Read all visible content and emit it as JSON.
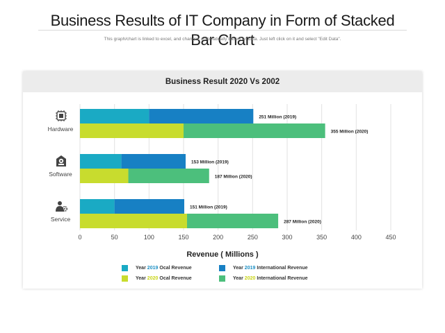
{
  "page": {
    "title": "Business Results of IT Company in Form of Stacked Bar Chart",
    "subtitle": "This graph/chart is linked to excel, and changes automatically based on data. Just left click on it and select \"Edit Data\"."
  },
  "colors": {
    "2019_local": "#1aaac4",
    "2019_international": "#1780c4",
    "2020_local": "#c8dc2e",
    "2020_international": "#4cbf7c",
    "year_2019_text": "#1b8fc4",
    "year_2020_text": "#c8d414"
  },
  "chart_data": {
    "type": "bar",
    "orientation": "horizontal",
    "stacked": true,
    "title": "Business Result 2020 Vs 2002",
    "xlabel": "Revenue ( Millions )",
    "ylabel": "",
    "xlim": [
      0,
      450
    ],
    "xticks": [
      0,
      50,
      100,
      150,
      200,
      250,
      300,
      350,
      400,
      450
    ],
    "grid": "vertical",
    "legend_position": "bottom",
    "categories": [
      {
        "name": "Hardware",
        "icon": "cpu-chip-icon"
      },
      {
        "name": "Software",
        "icon": "software-gear-icon"
      },
      {
        "name": "Service",
        "icon": "service-person-gear-icon"
      }
    ],
    "groups": [
      {
        "year": "2019",
        "series": [
          {
            "name": "Year 2019 Ocal Revenue",
            "color_key": "2019_local",
            "values": [
              100,
              60,
              50
            ]
          },
          {
            "name": "Year 2019 International Revenue",
            "color_key": "2019_international",
            "values": [
              151,
              93,
              101
            ]
          }
        ],
        "totals": [
          251,
          153,
          151
        ],
        "labels": [
          "251 Million (2019)",
          "153 Million (2019)",
          "151 Million (2019)"
        ]
      },
      {
        "year": "2020",
        "series": [
          {
            "name": "Year 2020 Ocal Revenue",
            "color_key": "2020_local",
            "values": [
              150,
              70,
              155
            ]
          },
          {
            "name": "Year 2020 International Revenue",
            "color_key": "2020_international",
            "values": [
              205,
              117,
              132
            ]
          }
        ],
        "totals": [
          355,
          187,
          287
        ],
        "labels": [
          "355 Million (2020)",
          "187 Million (2020)",
          "287 Million (2020)"
        ]
      }
    ]
  },
  "legend": [
    {
      "pre": "Year",
      "year": "2019",
      "post": "Ocal Revenue",
      "color_key": "2019_local",
      "year_color_key": "year_2019_text"
    },
    {
      "pre": "Year",
      "year": "2019",
      "post": "International Revenue",
      "color_key": "2019_international",
      "year_color_key": "year_2019_text"
    },
    {
      "pre": "Year",
      "year": "2020",
      "post": "Ocal Revenue",
      "color_key": "2020_local",
      "year_color_key": "year_2020_text"
    },
    {
      "pre": "Year",
      "year": "2020",
      "post": "International Revenue",
      "color_key": "2020_international",
      "year_color_key": "year_2020_text"
    }
  ]
}
